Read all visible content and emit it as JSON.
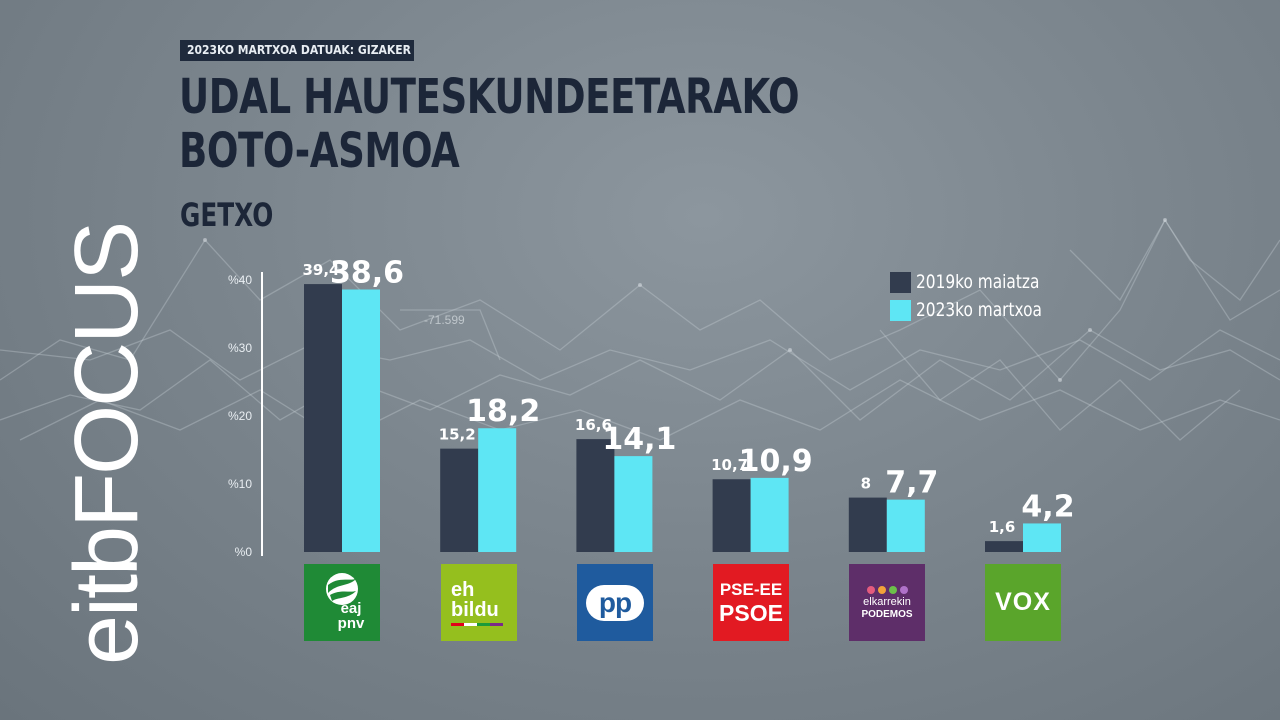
{
  "header": {
    "tag": "2023KO MARTXOA   DATUAK: GIZAKER",
    "title_line1": "UDAL HAUTESKUNDEETARAKO",
    "title_line2": "BOTO-ASMOA",
    "subtitle": "GETXO"
  },
  "brand": {
    "name": "eitbFOCUS"
  },
  "background": {
    "annotation": "-71.599"
  },
  "colors": {
    "series_2019": "#323c4e",
    "series_2023": "#5ee6f4",
    "eaj_pnv": "#1f8a36",
    "eh_bildu": "#95bf1e",
    "pp": "#1f5b9e",
    "pse_ee_psoe": "#e21a22",
    "elkarrekin_podemos": "#5e2e69",
    "vox": "#5aa52b"
  },
  "legend": [
    {
      "label": "2019ko maiatza",
      "color": "#323c4e"
    },
    {
      "label": "2023ko martxoa",
      "color": "#5ee6f4"
    }
  ],
  "chart_data": {
    "type": "bar",
    "title": "UDAL HAUTESKUNDEETARAKO BOTO-ASMOA",
    "subtitle": "GETXO",
    "categories": [
      "EAJ-PNV",
      "EH Bildu",
      "PP",
      "PSE-EE PSOE",
      "Elkarrekin Podemos",
      "VOX"
    ],
    "series": [
      {
        "name": "2019ko maiatza",
        "values": [
          39.4,
          15.2,
          16.6,
          10.7,
          8,
          1.6
        ],
        "labels": [
          "39,4",
          "15,2",
          "16,6",
          "10,7",
          "8",
          "1,6"
        ]
      },
      {
        "name": "2023ko martxoa",
        "values": [
          38.6,
          18.2,
          14.1,
          10.9,
          7.7,
          4.2
        ],
        "labels": [
          "38,6",
          "18,2",
          "14,1",
          "10,9",
          "7,7",
          "4,2"
        ]
      }
    ],
    "y_ticks": [
      0,
      10,
      20,
      30,
      40
    ],
    "y_tick_labels": [
      "%0",
      "%10",
      "%20",
      "%30",
      "%40"
    ],
    "ylim": [
      0,
      40
    ],
    "grid": false,
    "legend_position": "top-right"
  },
  "logos": [
    {
      "party": "eaj-pnv",
      "line1": "eaj",
      "line2": "pnv"
    },
    {
      "party": "eh-bildu",
      "line1": "eh",
      "line2": "bildu"
    },
    {
      "party": "pp",
      "line1": "pp"
    },
    {
      "party": "pse-ee-psoe",
      "line1": "PSE-EE",
      "line2": "PSOE"
    },
    {
      "party": "elkarrekin-podemos",
      "line1": "elkarrekin",
      "line2": "PODEMOS"
    },
    {
      "party": "vox",
      "line1": "VOX"
    }
  ]
}
